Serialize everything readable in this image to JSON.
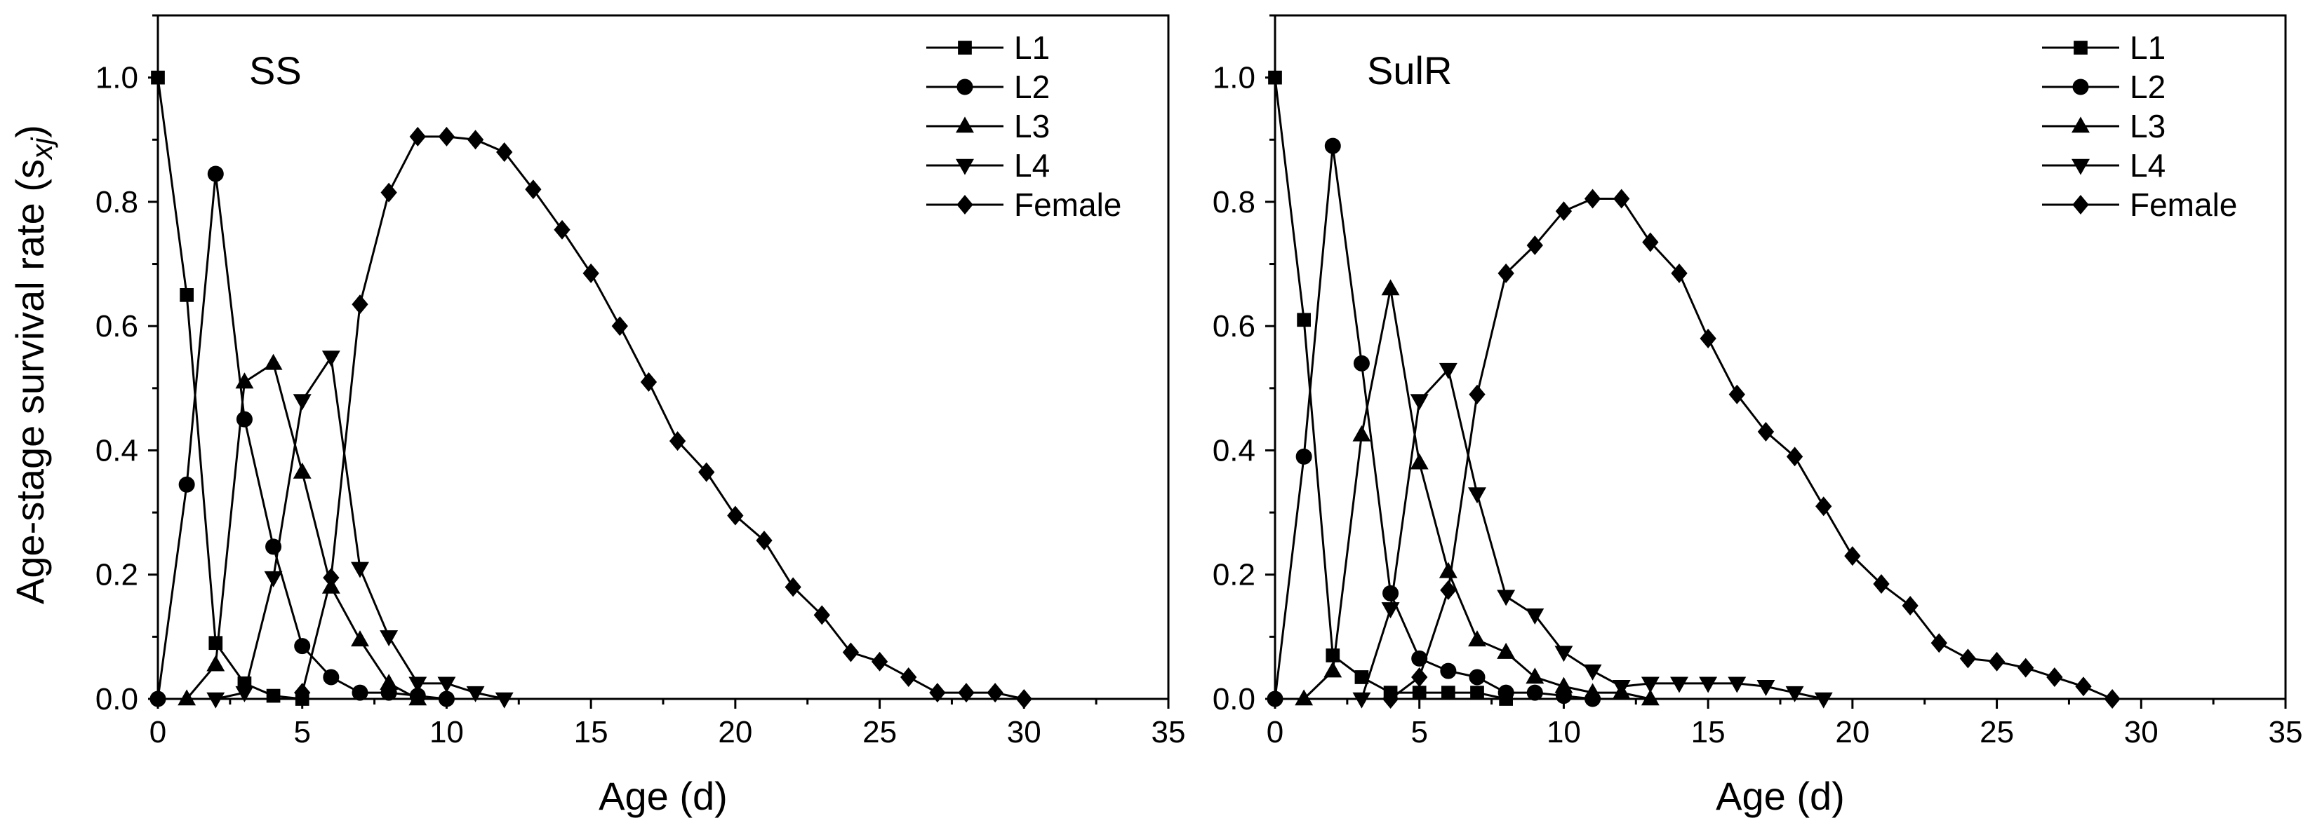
{
  "chart_data": [
    {
      "type": "line",
      "title": "SS",
      "xlabel": "Age (d)",
      "ylabel": "Age-stage survival rate (s",
      "ylabel_subscript": "xj",
      "ylabel_close": ")",
      "xlim": [
        0,
        35
      ],
      "ylim": [
        0,
        1.1
      ],
      "xticks": [
        0,
        5,
        10,
        15,
        20,
        25,
        30,
        35
      ],
      "yticks": [
        0.0,
        0.2,
        0.4,
        0.6,
        0.8,
        1.0
      ],
      "legend_position": "top-right",
      "series": [
        {
          "name": "L1",
          "marker": "square",
          "x": [
            0,
            1,
            2,
            3,
            4,
            5
          ],
          "y": [
            1.0,
            0.65,
            0.09,
            0.025,
            0.005,
            0.0
          ]
        },
        {
          "name": "L2",
          "marker": "circle",
          "x": [
            0,
            1,
            2,
            3,
            4,
            5,
            6,
            7,
            8,
            9,
            10
          ],
          "y": [
            0.0,
            0.345,
            0.845,
            0.45,
            0.245,
            0.085,
            0.035,
            0.01,
            0.01,
            0.005,
            0.0
          ]
        },
        {
          "name": "L3",
          "marker": "triangle-up",
          "x": [
            1,
            2,
            3,
            4,
            5,
            6,
            7,
            8,
            9
          ],
          "y": [
            0.0,
            0.055,
            0.51,
            0.54,
            0.365,
            0.18,
            0.095,
            0.025,
            0.0
          ]
        },
        {
          "name": "L4",
          "marker": "triangle-down",
          "x": [
            2,
            3,
            4,
            5,
            6,
            7,
            8,
            9,
            10,
            11,
            12
          ],
          "y": [
            0.0,
            0.01,
            0.195,
            0.48,
            0.55,
            0.21,
            0.1,
            0.025,
            0.025,
            0.01,
            0.0
          ]
        },
        {
          "name": "Female",
          "marker": "diamond",
          "x": [
            5,
            6,
            7,
            8,
            9,
            10,
            11,
            12,
            13,
            14,
            15,
            16,
            17,
            18,
            19,
            20,
            21,
            22,
            23,
            24,
            25,
            26,
            27,
            28,
            29,
            30
          ],
          "y": [
            0.01,
            0.195,
            0.635,
            0.815,
            0.905,
            0.905,
            0.9,
            0.88,
            0.82,
            0.755,
            0.685,
            0.6,
            0.51,
            0.415,
            0.365,
            0.295,
            0.255,
            0.18,
            0.135,
            0.075,
            0.06,
            0.035,
            0.01,
            0.01,
            0.01,
            0.0
          ]
        }
      ]
    },
    {
      "type": "line",
      "title": "SulR",
      "xlabel": "Age (d)",
      "xlim": [
        0,
        35
      ],
      "ylim": [
        0,
        1.1
      ],
      "xticks": [
        0,
        5,
        10,
        15,
        20,
        25,
        30,
        35
      ],
      "yticks": [
        0.0,
        0.2,
        0.4,
        0.6,
        0.8,
        1.0
      ],
      "legend_position": "top-right",
      "series": [
        {
          "name": "L1",
          "marker": "square",
          "x": [
            0,
            1,
            2,
            3,
            4,
            5,
            6,
            7,
            8
          ],
          "y": [
            1.0,
            0.61,
            0.07,
            0.035,
            0.01,
            0.01,
            0.01,
            0.01,
            0.0
          ]
        },
        {
          "name": "L2",
          "marker": "circle",
          "x": [
            0,
            1,
            2,
            3,
            4,
            5,
            6,
            7,
            8,
            9,
            10,
            11
          ],
          "y": [
            0.0,
            0.39,
            0.89,
            0.54,
            0.17,
            0.065,
            0.045,
            0.035,
            0.01,
            0.01,
            0.005,
            0.0
          ]
        },
        {
          "name": "L3",
          "marker": "triangle-up",
          "x": [
            1,
            2,
            3,
            4,
            5,
            6,
            7,
            8,
            9,
            10,
            11,
            12,
            13
          ],
          "y": [
            0.0,
            0.045,
            0.425,
            0.66,
            0.38,
            0.205,
            0.095,
            0.075,
            0.035,
            0.02,
            0.01,
            0.01,
            0.0
          ]
        },
        {
          "name": "L4",
          "marker": "triangle-down",
          "x": [
            3,
            4,
            5,
            6,
            7,
            8,
            9,
            10,
            11,
            12,
            13,
            14,
            15,
            16,
            17,
            18,
            19
          ],
          "y": [
            0.0,
            0.145,
            0.48,
            0.53,
            0.33,
            0.165,
            0.135,
            0.075,
            0.045,
            0.02,
            0.025,
            0.025,
            0.025,
            0.025,
            0.02,
            0.01,
            0.0
          ]
        },
        {
          "name": "Female",
          "marker": "diamond",
          "x": [
            4,
            5,
            6,
            7,
            8,
            9,
            10,
            11,
            12,
            13,
            14,
            15,
            16,
            17,
            18,
            19,
            20,
            21,
            22,
            23,
            24,
            25,
            26,
            27,
            28,
            29
          ],
          "y": [
            0.0,
            0.035,
            0.175,
            0.49,
            0.685,
            0.73,
            0.785,
            0.805,
            0.805,
            0.735,
            0.685,
            0.58,
            0.49,
            0.43,
            0.39,
            0.31,
            0.23,
            0.185,
            0.15,
            0.09,
            0.065,
            0.06,
            0.05,
            0.035,
            0.02,
            0.0
          ]
        }
      ]
    }
  ]
}
